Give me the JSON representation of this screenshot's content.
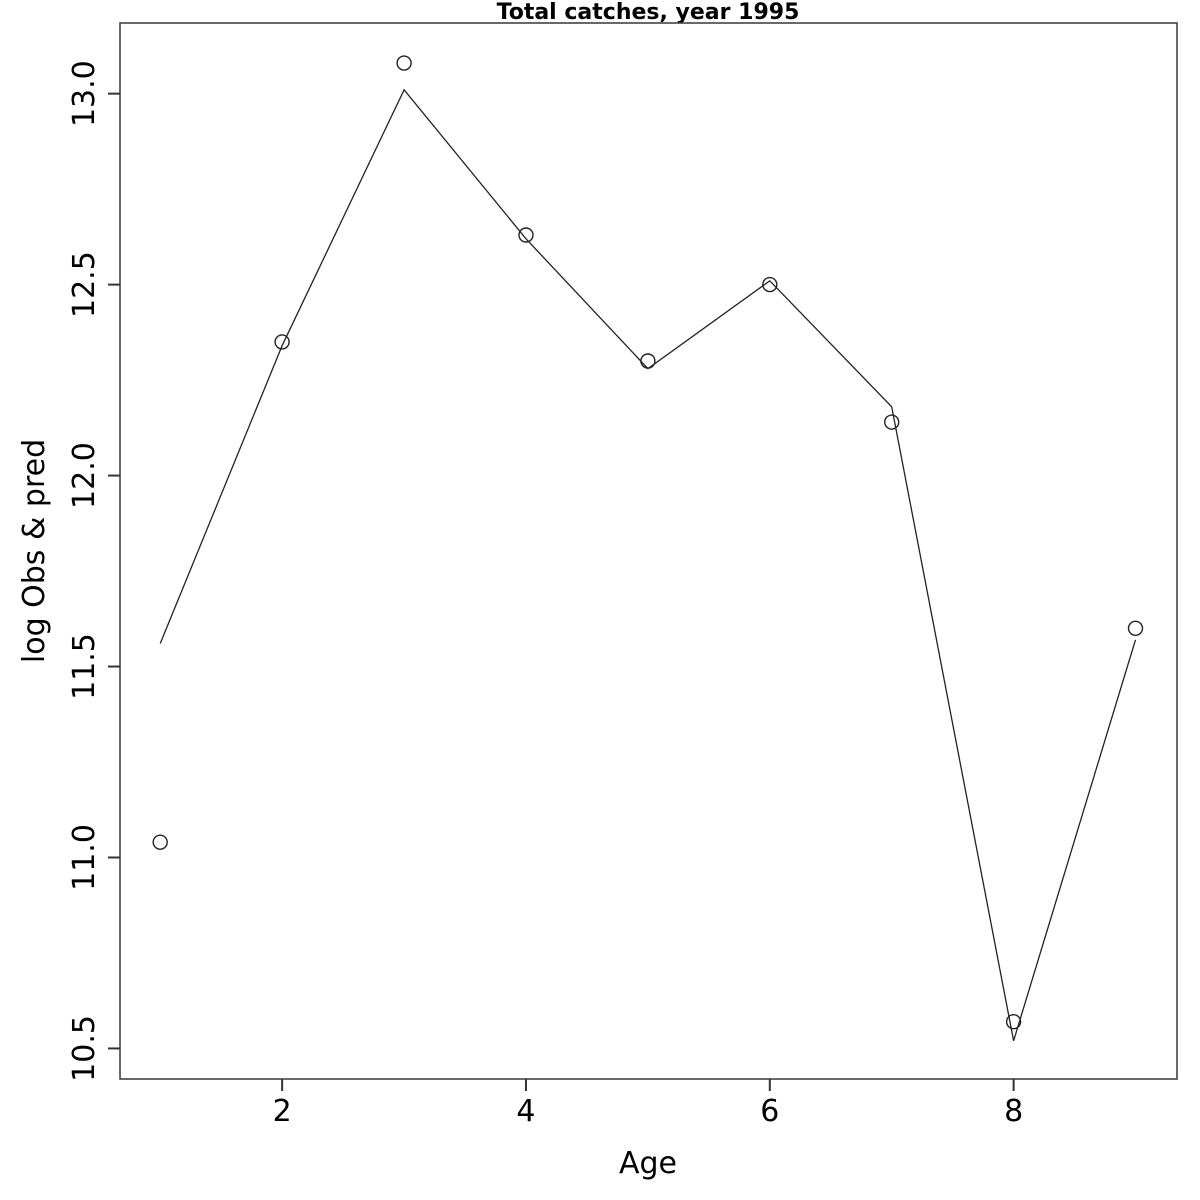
{
  "title": "Total catches, year 1995",
  "colors": {
    "background": "#ffffff",
    "line": "#222222",
    "point_stroke": "#222222",
    "box": "#444444",
    "text": "#000000"
  },
  "chart_data": {
    "type": "line",
    "title": "Total catches, year 1995",
    "xlabel": "Age",
    "ylabel": "log Obs & pred",
    "x": [
      1,
      2,
      3,
      4,
      5,
      6,
      7,
      8,
      9
    ],
    "series": [
      {
        "name": "Observed (open circles)",
        "marker": "open-circle",
        "draw": "points",
        "values": [
          11.04,
          12.35,
          13.08,
          12.63,
          12.3,
          12.5,
          12.14,
          10.57,
          11.6
        ]
      },
      {
        "name": "Predicted (line)",
        "marker": "none",
        "draw": "line",
        "values": [
          11.56,
          12.34,
          13.01,
          12.62,
          12.28,
          12.51,
          12.18,
          10.52,
          11.57
        ]
      }
    ],
    "x_ticks": [
      2,
      4,
      6,
      8
    ],
    "y_ticks": [
      10.5,
      11.0,
      11.5,
      12.0,
      12.5,
      13.0
    ],
    "y_tick_labels": [
      "10.5",
      "11.0",
      "11.5",
      "12.0",
      "12.5",
      "13.0"
    ],
    "x_tick_labels": [
      "2",
      "4",
      "6",
      "8"
    ],
    "xlim": [
      0.67,
      9.34
    ],
    "ylim": [
      10.42,
      13.185
    ],
    "grid": false,
    "legend": "none",
    "point_radius": 7
  }
}
